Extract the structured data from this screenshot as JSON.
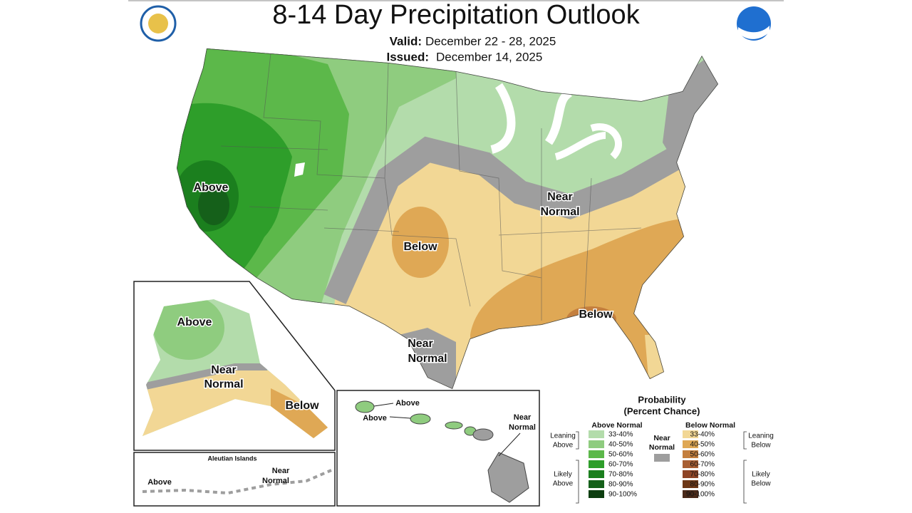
{
  "header": {
    "title": "8-14 Day Precipitation Outlook",
    "valid_label": "Valid:",
    "valid": "December 22 - 28, 2025",
    "issued_label": "Issued:",
    "issued": "December 14, 2025"
  },
  "conus_labels": {
    "above": "Above",
    "below_central": "Below",
    "near_normal_east": [
      "Near",
      "Normal"
    ],
    "near_normal_texas": [
      "Near",
      "Normal"
    ],
    "below_southeast": "Below"
  },
  "alaska_labels": {
    "above": "Above",
    "near_normal": [
      "Near",
      "Normal"
    ],
    "below": "Below"
  },
  "aleutian_labels": {
    "title": "Aleutian Islands",
    "above": "Above",
    "near_normal": [
      "Near",
      "Normal"
    ]
  },
  "hawaii_labels": {
    "above_1": "Above",
    "above_2": "Above",
    "near_normal": [
      "Near",
      "Normal"
    ]
  },
  "legend": {
    "title": [
      "Probability",
      "(Percent Chance)"
    ],
    "above_header": "Above Normal",
    "below_header": "Below Normal",
    "near_header": [
      "Near",
      "Normal"
    ],
    "leaning_above": [
      "Leaning",
      "Above"
    ],
    "likely_above": [
      "Likely",
      "Above"
    ],
    "leaning_below": [
      "Leaning",
      "Below"
    ],
    "likely_below": [
      "Likely",
      "Below"
    ],
    "bins": [
      "33-40%",
      "40-50%",
      "50-60%",
      "60-70%",
      "70-80%",
      "80-90%",
      "90-100%"
    ],
    "above_colors": [
      "#b3dcab",
      "#8fcc7f",
      "#5cb84a",
      "#2e9e2a",
      "#1b7f1e",
      "#15601a",
      "#0d3e10"
    ],
    "below_colors": [
      "#f2d795",
      "#dfa855",
      "#c47f3e",
      "#a85f33",
      "#8e4526",
      "#6e3816",
      "#4a2a1a"
    ],
    "near_color": "#9e9e9e"
  }
}
